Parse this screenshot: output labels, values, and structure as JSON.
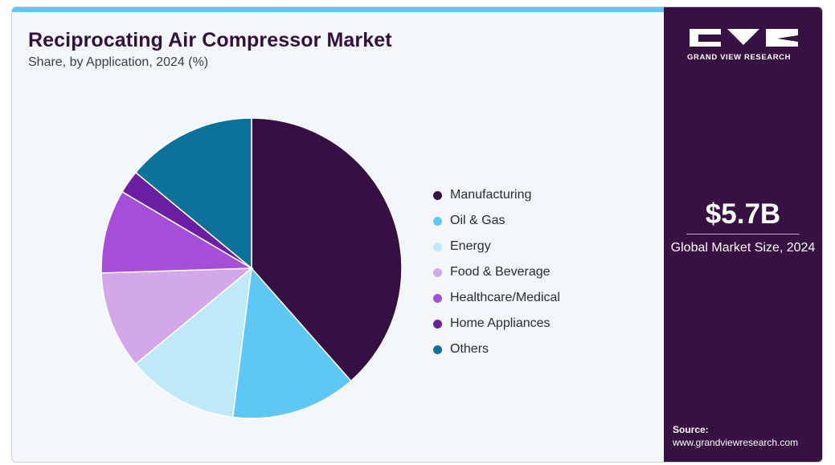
{
  "chart": {
    "title": "Reciprocating Air Compressor Market",
    "subtitle": "Share, by Application, 2024 (%)"
  },
  "chart_data": {
    "type": "pie",
    "title": "Reciprocating Air Compressor Market",
    "subtitle": "Share, by Application, 2024 (%)",
    "categories": [
      "Manufacturing",
      "Oil & Gas",
      "Energy",
      "Food & Beverage",
      "Healthcare/Medical",
      "Home Appliances",
      "Others"
    ],
    "values": [
      38.5,
      13.5,
      12.0,
      10.5,
      9.0,
      2.5,
      14.0
    ],
    "colors": [
      "#361045",
      "#5ec8f4",
      "#bde9f8",
      "#d2a8ea",
      "#a54ed8",
      "#6a1fa2",
      "#0b729a"
    ],
    "start_angle_deg": 0,
    "direction": "clockwise",
    "legend_position": "right"
  },
  "sidebar": {
    "brand": "GRAND VIEW RESEARCH",
    "market_value": "$5.7B",
    "market_label": "Global Market Size, 2024",
    "source_label": "Source:",
    "source_url": "www.grandviewresearch.com"
  }
}
